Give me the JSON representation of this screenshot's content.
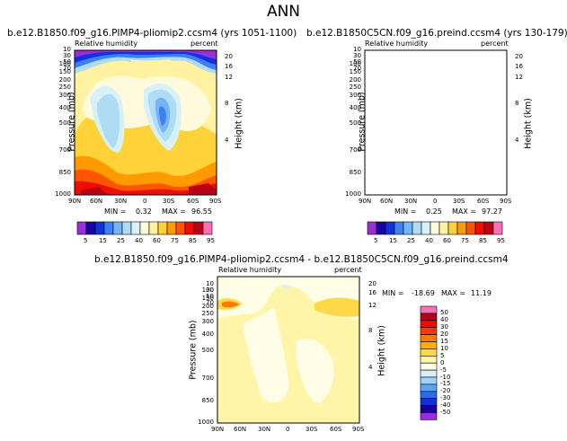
{
  "title": "ANN",
  "chart_data": [
    {
      "type": "heatmap",
      "title": "b.e12.B1850.f09_g16.PIMP4-pliomip2.ccsm4  (yrs 1051-1100)",
      "left_label": "Relative humidity",
      "right_label": "percent",
      "ylabel": "Pressure (mb)",
      "y2label": "Height (km)",
      "x_ticks": [
        "90N",
        "60N",
        "30N",
        "0",
        "30S",
        "60S",
        "90S"
      ],
      "y_ticks": [
        "10",
        "30",
        "50",
        "70",
        "100",
        "150",
        "200",
        "250",
        "300",
        "400",
        "500",
        "700",
        "850",
        "1000"
      ],
      "y2_ticks": [
        "20",
        "16",
        "12",
        "8",
        "4"
      ],
      "ylim": [
        1000,
        10
      ],
      "min_label": "MIN =",
      "min": "0.32",
      "max_label": "MAX =",
      "max": "96.55"
    },
    {
      "type": "heatmap",
      "title": "b.e12.B1850C5CN.f09_g16.preind.ccsm4  (yrs 130-179)",
      "left_label": "Relative humidity",
      "right_label": "percent",
      "ylabel": "Pressure (mb)",
      "y2label": "Height (km)",
      "x_ticks": [
        "90N",
        "60N",
        "30N",
        "0",
        "30S",
        "60S",
        "90S"
      ],
      "y_ticks": [
        "10",
        "30",
        "50",
        "70",
        "100",
        "150",
        "200",
        "250",
        "300",
        "400",
        "500",
        "700",
        "850",
        "1000"
      ],
      "y2_ticks": [
        "20",
        "16",
        "12",
        "8",
        "4"
      ],
      "ylim": [
        1000,
        10
      ],
      "min_label": "MIN =",
      "min": "0.25",
      "max_label": "MAX =",
      "max": "97.27"
    },
    {
      "type": "heatmap",
      "title": "b.e12.B1850.f09_g16.PIMP4-pliomip2.ccsm4  -  b.e12.B1850C5CN.f09_g16.preind.ccsm4",
      "left_label": "Relative humidity",
      "right_label": "percent",
      "ylabel": "Pressure (mb)",
      "y2label": "Height (km)",
      "x_ticks": [
        "90N",
        "60N",
        "30N",
        "0",
        "30S",
        "60S",
        "90S"
      ],
      "y_ticks": [
        "10",
        "30",
        "50",
        "70",
        "100",
        "150",
        "200",
        "250",
        "300",
        "400",
        "500",
        "700",
        "850",
        "1000"
      ],
      "y2_ticks": [
        "20",
        "16",
        "12",
        "8",
        "4"
      ],
      "ylim": [
        1000,
        10
      ],
      "min_label": "MIN =",
      "min": "-18.69",
      "max_label": "MAX =",
      "max": "11.19"
    }
  ],
  "colorbar_abs": {
    "labels": [
      "5",
      "15",
      "25",
      "40",
      "60",
      "75",
      "85",
      "95"
    ],
    "colors": [
      "#9b2fd6",
      "#1a00a8",
      "#1330e0",
      "#3e7ff5",
      "#74b5f5",
      "#aedcf5",
      "#d8f1f8",
      "#fffadb",
      "#fff2a0",
      "#ffd23a",
      "#ff9b00",
      "#ff5400",
      "#ef0c00",
      "#b80016",
      "#ff6fb8"
    ]
  },
  "colorbar_diff": {
    "labels": [
      "50",
      "40",
      "30",
      "20",
      "15",
      "10",
      "5",
      "0",
      "-5",
      "-10",
      "-15",
      "-20",
      "-30",
      "-40",
      "-50"
    ],
    "colors": [
      "#ff6fb8",
      "#b80016",
      "#ef0c00",
      "#ff3a00",
      "#ff7a00",
      "#ffae00",
      "#ffd84a",
      "#fff5a8",
      "#fffde6",
      "#d9f0f8",
      "#9fd3f7",
      "#58a6f5",
      "#2b6be8",
      "#1330d0",
      "#1a009a",
      "#9b2fd6"
    ]
  }
}
